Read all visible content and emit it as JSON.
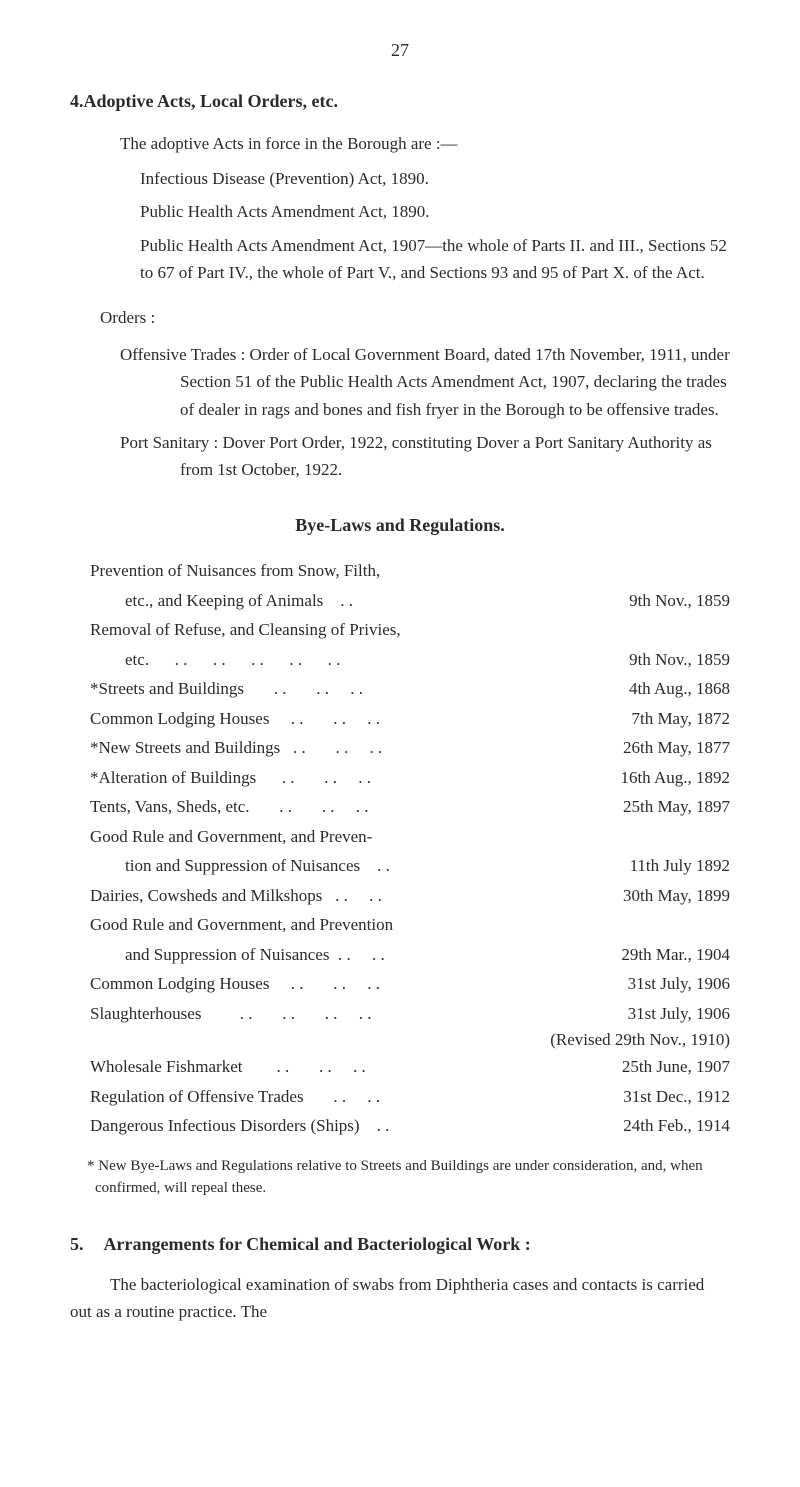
{
  "page_number": "27",
  "section4": {
    "number": "4.",
    "title": "Adoptive Acts, Local Orders, etc.",
    "intro": "The adoptive Acts in force in the Borough are :—",
    "acts": [
      "Infectious Disease (Prevention) Act, 1890.",
      "Public Health Acts Amendment Act, 1890.",
      "Public Health Acts Amendment Act, 1907—the whole of Parts II. and III., Sections 52 to 67 of Part IV., the whole of Part V., and Sections 93 and 95 of Part X. of the Act."
    ],
    "orders_label": "Orders :",
    "orders": [
      "Offensive Trades : Order of Local Government Board, dated 17th November, 1911, under Section 51 of the Public Health Acts Amendment Act, 1907, declaring the trades of dealer in rags and bones and fish fryer in the Borough to be offensive trades.",
      "Port Sanitary : Dover Port Order, 1922, constituting Dover a Port Sanitary Authority as from 1st October, 1922."
    ]
  },
  "byelaws": {
    "heading": "Bye-Laws and Regulations.",
    "rows": [
      {
        "label": "Prevention of Nuisances from Snow, Filth, etc., and Keeping of Animals",
        "date": "9th Nov., 1859",
        "multiline": true,
        "line1": "Prevention of Nuisances from Snow, Filth,",
        "line2": "etc., and Keeping of Animals"
      },
      {
        "label": "Removal of Refuse, and Cleansing of Privies, etc.",
        "date": "9th Nov., 1859",
        "multiline": true,
        "line1": "Removal of Refuse, and Cleansing of Privies,",
        "line2": "etc."
      },
      {
        "label": "*Streets and Buildings",
        "date": "4th Aug., 1868"
      },
      {
        "label": "Common Lodging Houses",
        "date": "7th May, 1872"
      },
      {
        "label": "*New Streets and Buildings",
        "date": "26th May, 1877"
      },
      {
        "label": "*Alteration of Buildings",
        "date": "16th Aug., 1892"
      },
      {
        "label": "Tents, Vans, Sheds, etc.",
        "date": "25th May, 1897"
      },
      {
        "label": "Good Rule and Government, and Prevention and Suppression of Nuisances",
        "date": "11th July 1892",
        "multiline": true,
        "line1": "Good Rule and Government, and Preven-",
        "line2": "tion and Suppression of Nuisances"
      },
      {
        "label": "Dairies, Cowsheds and Milkshops",
        "date": "30th May, 1899"
      },
      {
        "label": "Good Rule and Government, and Prevention and Suppression of Nuisances",
        "date": "29th Mar., 1904",
        "multiline": true,
        "line1": "Good Rule and Government, and Prevention",
        "line2": "and Suppression of Nuisances"
      },
      {
        "label": "Common Lodging Houses",
        "date": "31st July, 1906"
      },
      {
        "label": "Slaughterhouses",
        "date": "31st July, 1906"
      }
    ],
    "revised": "(Revised 29th Nov., 1910)",
    "rows2": [
      {
        "label": "Wholesale Fishmarket",
        "date": "25th June, 1907"
      },
      {
        "label": "Regulation of Offensive Trades",
        "date": "31st Dec., 1912"
      },
      {
        "label": "Dangerous Infectious Disorders (Ships)",
        "date": "24th Feb., 1914"
      }
    ],
    "footnote": "* New Bye-Laws and Regulations relative to Streets and Buildings are under consideration, and, when confirmed, will repeal these."
  },
  "section5": {
    "number": "5.",
    "title": "Arrangements for Chemical and Bacteriological Work :",
    "para": "The bacteriological examination of swabs from Diphtheria cases and contacts is carried out as a routine practice. The"
  }
}
